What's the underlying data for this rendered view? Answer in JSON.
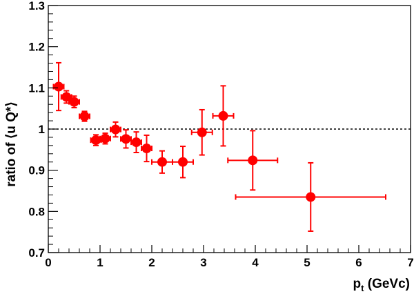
{
  "chart_data": {
    "type": "scatter",
    "title": "",
    "xlabel": {
      "main": "p",
      "sub": "t",
      "rest": " (GeVc)"
    },
    "ylabel": "ratio of ⟨u Q*⟩",
    "xlim": [
      0,
      7
    ],
    "ylim": [
      0.7,
      1.3
    ],
    "x_ticks": [
      0,
      1,
      2,
      3,
      4,
      5,
      6,
      7
    ],
    "x_tick_labels": [
      "0",
      "1",
      "2",
      "3",
      "4",
      "5",
      "6",
      "7"
    ],
    "y_ticks": [
      0.7,
      0.8,
      0.9,
      1.0,
      1.1,
      1.2,
      1.3
    ],
    "y_tick_labels": [
      "0.7",
      "0.8",
      "0.9",
      "1",
      "1.1",
      "1.2",
      "1.3"
    ],
    "reference_line": {
      "y": 1.0,
      "style": "dotted"
    },
    "grid": false,
    "marker_color": "#ff0000",
    "points": [
      {
        "x": 0.2,
        "y": 1.103,
        "xerr": 0.1,
        "yerr": 0.058
      },
      {
        "x": 0.35,
        "y": 1.078,
        "xerr": 0.1,
        "yerr": 0.015
      },
      {
        "x": 0.5,
        "y": 1.066,
        "xerr": 0.1,
        "yerr": 0.014
      },
      {
        "x": 0.7,
        "y": 1.031,
        "xerr": 0.1,
        "yerr": 0.012
      },
      {
        "x": 0.92,
        "y": 0.973,
        "xerr": 0.1,
        "yerr": 0.013
      },
      {
        "x": 1.1,
        "y": 0.977,
        "xerr": 0.1,
        "yerr": 0.013
      },
      {
        "x": 1.3,
        "y": 0.999,
        "xerr": 0.1,
        "yerr": 0.018
      },
      {
        "x": 1.5,
        "y": 0.976,
        "xerr": 0.1,
        "yerr": 0.022
      },
      {
        "x": 1.7,
        "y": 0.968,
        "xerr": 0.1,
        "yerr": 0.025
      },
      {
        "x": 1.9,
        "y": 0.953,
        "xerr": 0.1,
        "yerr": 0.032
      },
      {
        "x": 2.2,
        "y": 0.92,
        "xerr": 0.2,
        "yerr": 0.027
      },
      {
        "x": 2.6,
        "y": 0.92,
        "xerr": 0.2,
        "yerr": 0.038
      },
      {
        "x": 2.97,
        "y": 0.992,
        "xerr": 0.2,
        "yerr": 0.055
      },
      {
        "x": 3.38,
        "y": 1.032,
        "xerr": 0.2,
        "yerr": 0.073
      },
      {
        "x": 3.95,
        "y": 0.924,
        "xerr": 0.48,
        "yerr": 0.072
      },
      {
        "x": 5.07,
        "y": 0.835,
        "xerr": 1.45,
        "yerr": 0.083
      }
    ]
  }
}
